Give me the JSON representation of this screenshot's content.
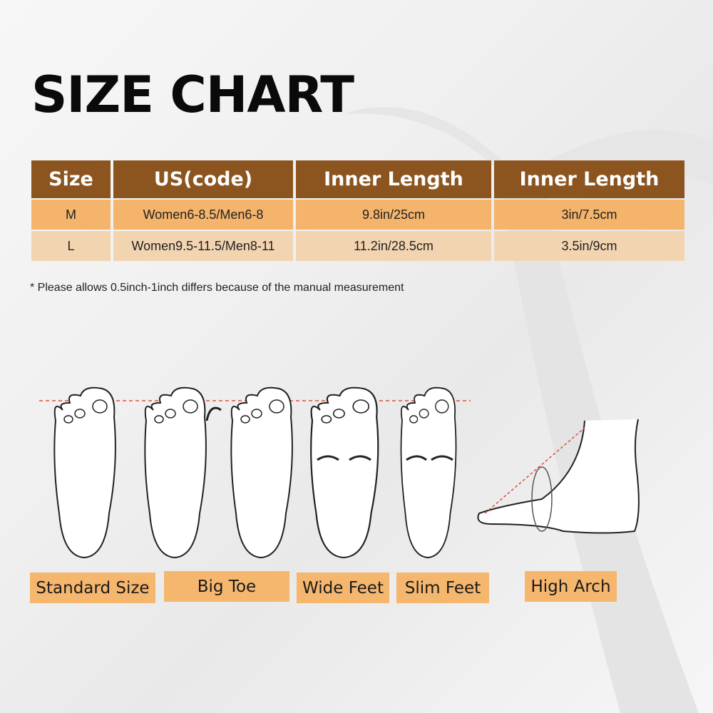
{
  "title": "SIZE CHART",
  "table": {
    "headers": [
      "Size",
      "US(code)",
      "Inner Length",
      "Inner Length"
    ],
    "rows": [
      [
        "M",
        "Women6-8.5/Men6-8",
        "9.8in/25cm",
        "3in/7.5cm"
      ],
      [
        "L",
        "Women9.5-11.5/Men8-11",
        "11.2in/28.5cm",
        "3.5in/9cm"
      ]
    ]
  },
  "note": "* Please allows 0.5inch-1inch differs because of the manual measurement",
  "foot_types": [
    "Standard Size",
    "Big Toe",
    "Wide Feet",
    "Slim Feet",
    "High Arch"
  ],
  "colors": {
    "header": "#8c5520",
    "row_m": "#f4b46c",
    "row_l": "#f3d4b1",
    "label": "#f5b66e",
    "guide_line": "#e0503c"
  }
}
